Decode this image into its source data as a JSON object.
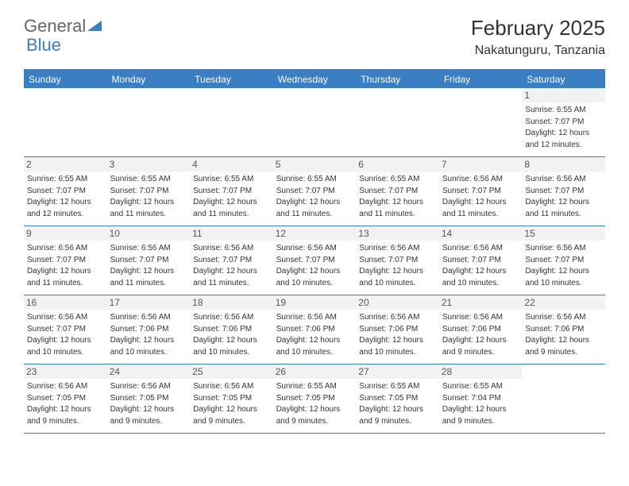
{
  "logo": {
    "text_general": "General",
    "text_blue": "Blue",
    "icon_color": "#3a7fc4"
  },
  "header": {
    "month_year": "February 2025",
    "location": "Nakatunguru, Tanzania"
  },
  "colors": {
    "header_bar": "#3a7fc4",
    "row_border": "#3a7fc4",
    "daynum_bg": "#f2f2f2",
    "text": "#333333",
    "background": "#ffffff"
  },
  "typography": {
    "month_fontsize": 26,
    "location_fontsize": 16,
    "dayname_fontsize": 12,
    "daynum_fontsize": 12,
    "cell_fontsize": 10
  },
  "calendar": {
    "daynames": [
      "Sunday",
      "Monday",
      "Tuesday",
      "Wednesday",
      "Thursday",
      "Friday",
      "Saturday"
    ],
    "weeks": [
      [
        {
          "empty": true
        },
        {
          "empty": true
        },
        {
          "empty": true
        },
        {
          "empty": true
        },
        {
          "empty": true
        },
        {
          "empty": true
        },
        {
          "day": "1",
          "sunrise": "Sunrise: 6:55 AM",
          "sunset": "Sunset: 7:07 PM",
          "daylight1": "Daylight: 12 hours",
          "daylight2": "and 12 minutes."
        }
      ],
      [
        {
          "day": "2",
          "sunrise": "Sunrise: 6:55 AM",
          "sunset": "Sunset: 7:07 PM",
          "daylight1": "Daylight: 12 hours",
          "daylight2": "and 12 minutes."
        },
        {
          "day": "3",
          "sunrise": "Sunrise: 6:55 AM",
          "sunset": "Sunset: 7:07 PM",
          "daylight1": "Daylight: 12 hours",
          "daylight2": "and 11 minutes."
        },
        {
          "day": "4",
          "sunrise": "Sunrise: 6:55 AM",
          "sunset": "Sunset: 7:07 PM",
          "daylight1": "Daylight: 12 hours",
          "daylight2": "and 11 minutes."
        },
        {
          "day": "5",
          "sunrise": "Sunrise: 6:55 AM",
          "sunset": "Sunset: 7:07 PM",
          "daylight1": "Daylight: 12 hours",
          "daylight2": "and 11 minutes."
        },
        {
          "day": "6",
          "sunrise": "Sunrise: 6:55 AM",
          "sunset": "Sunset: 7:07 PM",
          "daylight1": "Daylight: 12 hours",
          "daylight2": "and 11 minutes."
        },
        {
          "day": "7",
          "sunrise": "Sunrise: 6:56 AM",
          "sunset": "Sunset: 7:07 PM",
          "daylight1": "Daylight: 12 hours",
          "daylight2": "and 11 minutes."
        },
        {
          "day": "8",
          "sunrise": "Sunrise: 6:56 AM",
          "sunset": "Sunset: 7:07 PM",
          "daylight1": "Daylight: 12 hours",
          "daylight2": "and 11 minutes."
        }
      ],
      [
        {
          "day": "9",
          "sunrise": "Sunrise: 6:56 AM",
          "sunset": "Sunset: 7:07 PM",
          "daylight1": "Daylight: 12 hours",
          "daylight2": "and 11 minutes."
        },
        {
          "day": "10",
          "sunrise": "Sunrise: 6:56 AM",
          "sunset": "Sunset: 7:07 PM",
          "daylight1": "Daylight: 12 hours",
          "daylight2": "and 11 minutes."
        },
        {
          "day": "11",
          "sunrise": "Sunrise: 6:56 AM",
          "sunset": "Sunset: 7:07 PM",
          "daylight1": "Daylight: 12 hours",
          "daylight2": "and 11 minutes."
        },
        {
          "day": "12",
          "sunrise": "Sunrise: 6:56 AM",
          "sunset": "Sunset: 7:07 PM",
          "daylight1": "Daylight: 12 hours",
          "daylight2": "and 10 minutes."
        },
        {
          "day": "13",
          "sunrise": "Sunrise: 6:56 AM",
          "sunset": "Sunset: 7:07 PM",
          "daylight1": "Daylight: 12 hours",
          "daylight2": "and 10 minutes."
        },
        {
          "day": "14",
          "sunrise": "Sunrise: 6:56 AM",
          "sunset": "Sunset: 7:07 PM",
          "daylight1": "Daylight: 12 hours",
          "daylight2": "and 10 minutes."
        },
        {
          "day": "15",
          "sunrise": "Sunrise: 6:56 AM",
          "sunset": "Sunset: 7:07 PM",
          "daylight1": "Daylight: 12 hours",
          "daylight2": "and 10 minutes."
        }
      ],
      [
        {
          "day": "16",
          "sunrise": "Sunrise: 6:56 AM",
          "sunset": "Sunset: 7:07 PM",
          "daylight1": "Daylight: 12 hours",
          "daylight2": "and 10 minutes."
        },
        {
          "day": "17",
          "sunrise": "Sunrise: 6:56 AM",
          "sunset": "Sunset: 7:06 PM",
          "daylight1": "Daylight: 12 hours",
          "daylight2": "and 10 minutes."
        },
        {
          "day": "18",
          "sunrise": "Sunrise: 6:56 AM",
          "sunset": "Sunset: 7:06 PM",
          "daylight1": "Daylight: 12 hours",
          "daylight2": "and 10 minutes."
        },
        {
          "day": "19",
          "sunrise": "Sunrise: 6:56 AM",
          "sunset": "Sunset: 7:06 PM",
          "daylight1": "Daylight: 12 hours",
          "daylight2": "and 10 minutes."
        },
        {
          "day": "20",
          "sunrise": "Sunrise: 6:56 AM",
          "sunset": "Sunset: 7:06 PM",
          "daylight1": "Daylight: 12 hours",
          "daylight2": "and 10 minutes."
        },
        {
          "day": "21",
          "sunrise": "Sunrise: 6:56 AM",
          "sunset": "Sunset: 7:06 PM",
          "daylight1": "Daylight: 12 hours",
          "daylight2": "and 9 minutes."
        },
        {
          "day": "22",
          "sunrise": "Sunrise: 6:56 AM",
          "sunset": "Sunset: 7:06 PM",
          "daylight1": "Daylight: 12 hours",
          "daylight2": "and 9 minutes."
        }
      ],
      [
        {
          "day": "23",
          "sunrise": "Sunrise: 6:56 AM",
          "sunset": "Sunset: 7:05 PM",
          "daylight1": "Daylight: 12 hours",
          "daylight2": "and 9 minutes."
        },
        {
          "day": "24",
          "sunrise": "Sunrise: 6:56 AM",
          "sunset": "Sunset: 7:05 PM",
          "daylight1": "Daylight: 12 hours",
          "daylight2": "and 9 minutes."
        },
        {
          "day": "25",
          "sunrise": "Sunrise: 6:56 AM",
          "sunset": "Sunset: 7:05 PM",
          "daylight1": "Daylight: 12 hours",
          "daylight2": "and 9 minutes."
        },
        {
          "day": "26",
          "sunrise": "Sunrise: 6:55 AM",
          "sunset": "Sunset: 7:05 PM",
          "daylight1": "Daylight: 12 hours",
          "daylight2": "and 9 minutes."
        },
        {
          "day": "27",
          "sunrise": "Sunrise: 6:55 AM",
          "sunset": "Sunset: 7:05 PM",
          "daylight1": "Daylight: 12 hours",
          "daylight2": "and 9 minutes."
        },
        {
          "day": "28",
          "sunrise": "Sunrise: 6:55 AM",
          "sunset": "Sunset: 7:04 PM",
          "daylight1": "Daylight: 12 hours",
          "daylight2": "and 9 minutes."
        },
        {
          "empty": true
        }
      ]
    ]
  }
}
